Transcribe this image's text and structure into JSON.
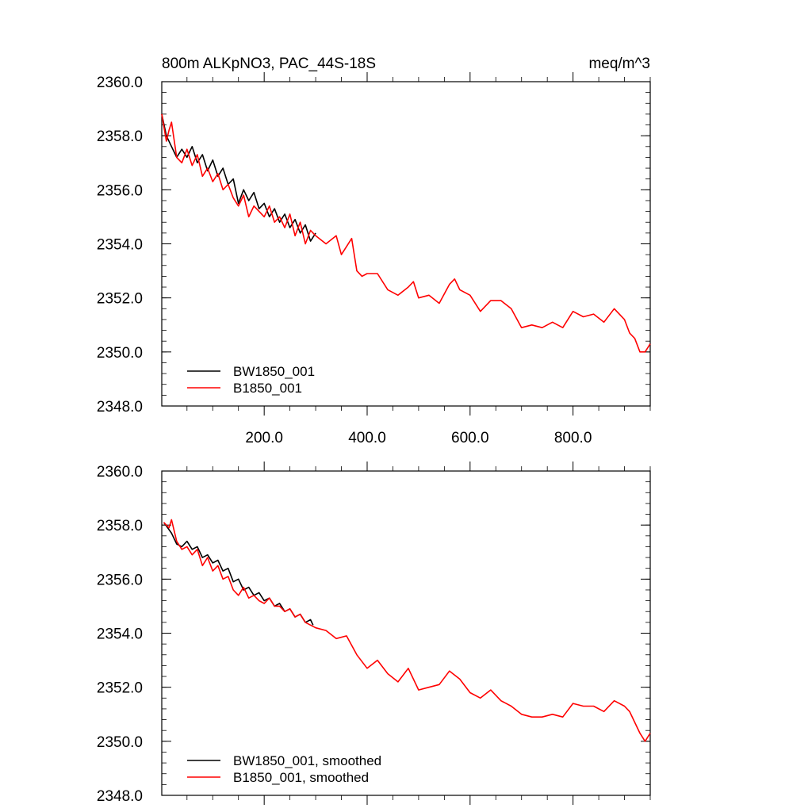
{
  "header": {
    "title_left": "800m ALKpNO3, PAC_44S-18S",
    "title_right": "meq/m^3"
  },
  "colors": {
    "BW1850_001": "#000000",
    "B1850_001": "#ff0000"
  },
  "chart_data": [
    {
      "type": "line",
      "title": "800m ALKpNO3, PAC_44S-18S",
      "units": "meq/m^3",
      "xlim": [
        1,
        950
      ],
      "ylim": [
        2348.0,
        2360.0
      ],
      "x_ticks": [
        200,
        400,
        600,
        800
      ],
      "x_tick_labels": [
        "200.0",
        "400.0",
        "600.0",
        "800.0"
      ],
      "y_ticks": [
        2348,
        2350,
        2352,
        2354,
        2356,
        2358,
        2360
      ],
      "y_tick_labels": [
        "2348.0",
        "2350.0",
        "2352.0",
        "2354.0",
        "2356.0",
        "2358.0",
        "2360.0"
      ],
      "legend_position": "bottom-left",
      "series": [
        {
          "name": "BW1850_001",
          "color": "#000000",
          "x": [
            1,
            10,
            20,
            30,
            40,
            50,
            60,
            70,
            80,
            90,
            100,
            110,
            120,
            130,
            140,
            150,
            160,
            170,
            180,
            190,
            200,
            210,
            220,
            230,
            240,
            250,
            260,
            270,
            280,
            290,
            300
          ],
          "y": [
            2358.8,
            2358.0,
            2357.6,
            2357.2,
            2357.5,
            2357.2,
            2357.6,
            2357.0,
            2357.3,
            2356.7,
            2357.1,
            2356.5,
            2356.8,
            2356.2,
            2356.4,
            2355.5,
            2356.0,
            2355.6,
            2355.9,
            2355.3,
            2355.5,
            2355.0,
            2355.3,
            2354.8,
            2355.1,
            2354.6,
            2354.9,
            2354.4,
            2354.7,
            2354.1,
            2354.4
          ]
        },
        {
          "name": "B1850_001",
          "color": "#ff0000",
          "x": [
            1,
            10,
            15,
            20,
            30,
            40,
            50,
            60,
            70,
            80,
            90,
            100,
            110,
            120,
            130,
            140,
            150,
            160,
            170,
            180,
            190,
            200,
            210,
            220,
            230,
            240,
            250,
            260,
            270,
            280,
            290,
            300,
            320,
            340,
            350,
            360,
            370,
            380,
            390,
            400,
            420,
            440,
            460,
            480,
            490,
            500,
            520,
            540,
            560,
            570,
            580,
            600,
            620,
            640,
            660,
            680,
            700,
            720,
            740,
            760,
            780,
            800,
            820,
            840,
            860,
            880,
            900,
            910,
            920,
            930,
            940,
            950
          ],
          "y": [
            2358.8,
            2357.8,
            2358.2,
            2358.5,
            2357.2,
            2357.0,
            2357.5,
            2356.9,
            2357.3,
            2356.5,
            2356.8,
            2356.3,
            2356.6,
            2356.0,
            2356.2,
            2355.7,
            2355.4,
            2355.8,
            2355.0,
            2355.4,
            2355.2,
            2355.0,
            2355.4,
            2354.8,
            2355.0,
            2354.6,
            2355.1,
            2354.3,
            2354.8,
            2354.0,
            2354.5,
            2354.3,
            2354.0,
            2354.3,
            2353.6,
            2353.9,
            2354.2,
            2353.0,
            2352.8,
            2352.9,
            2352.9,
            2352.3,
            2352.1,
            2352.4,
            2352.6,
            2352.0,
            2352.1,
            2351.8,
            2352.5,
            2352.7,
            2352.3,
            2352.1,
            2351.5,
            2351.9,
            2351.9,
            2351.6,
            2350.9,
            2351.0,
            2350.9,
            2351.1,
            2350.9,
            2351.5,
            2351.3,
            2351.4,
            2351.1,
            2351.6,
            2351.2,
            2350.7,
            2350.5,
            2350.0,
            2350.0,
            2350.3
          ]
        }
      ]
    },
    {
      "type": "line",
      "xlim": [
        1,
        950
      ],
      "ylim": [
        2348.0,
        2360.0
      ],
      "y_ticks": [
        2348,
        2350,
        2352,
        2354,
        2356,
        2358,
        2360
      ],
      "y_tick_labels": [
        "2348.0",
        "2350.0",
        "2352.0",
        "2354.0",
        "2356.0",
        "2358.0",
        "2360.0"
      ],
      "legend_position": "bottom-left",
      "series": [
        {
          "name": "BW1850_001, smoothed",
          "color": "#000000",
          "x": [
            5,
            20,
            30,
            40,
            50,
            60,
            70,
            80,
            90,
            100,
            110,
            120,
            130,
            140,
            150,
            160,
            170,
            180,
            190,
            200,
            210,
            220,
            230,
            240,
            250,
            260,
            270,
            280,
            290,
            295
          ],
          "y": [
            2358.1,
            2357.7,
            2357.3,
            2357.2,
            2357.4,
            2357.1,
            2357.2,
            2356.8,
            2356.9,
            2356.6,
            2356.7,
            2356.3,
            2356.4,
            2355.9,
            2356.0,
            2355.6,
            2355.7,
            2355.4,
            2355.5,
            2355.2,
            2355.3,
            2355.0,
            2355.1,
            2354.8,
            2354.9,
            2354.6,
            2354.7,
            2354.4,
            2354.5,
            2354.3
          ]
        },
        {
          "name": "B1850_001, smoothed",
          "color": "#ff0000",
          "x": [
            5,
            15,
            20,
            30,
            40,
            50,
            60,
            70,
            80,
            90,
            100,
            110,
            120,
            130,
            140,
            150,
            160,
            170,
            180,
            190,
            200,
            210,
            220,
            230,
            240,
            250,
            260,
            270,
            280,
            290,
            300,
            320,
            340,
            360,
            380,
            400,
            420,
            440,
            460,
            480,
            500,
            520,
            540,
            560,
            580,
            600,
            620,
            640,
            660,
            680,
            700,
            720,
            740,
            760,
            780,
            800,
            820,
            840,
            860,
            880,
            900,
            910,
            920,
            930,
            940,
            950
          ],
          "y": [
            2358.1,
            2357.9,
            2358.2,
            2357.4,
            2357.1,
            2357.2,
            2356.9,
            2357.1,
            2356.5,
            2356.8,
            2356.3,
            2356.5,
            2356.0,
            2356.1,
            2355.6,
            2355.4,
            2355.7,
            2355.3,
            2355.4,
            2355.2,
            2355.1,
            2355.3,
            2355.0,
            2355.0,
            2354.8,
            2354.9,
            2354.6,
            2354.7,
            2354.4,
            2354.3,
            2354.2,
            2354.1,
            2353.8,
            2353.9,
            2353.2,
            2352.7,
            2353.0,
            2352.5,
            2352.2,
            2352.7,
            2351.9,
            2352.0,
            2352.1,
            2352.6,
            2352.3,
            2351.8,
            2351.6,
            2351.9,
            2351.5,
            2351.3,
            2351.0,
            2350.9,
            2350.9,
            2351.0,
            2350.9,
            2351.4,
            2351.3,
            2351.3,
            2351.1,
            2351.5,
            2351.3,
            2351.1,
            2350.7,
            2350.3,
            2350.0,
            2350.3
          ]
        }
      ]
    }
  ]
}
